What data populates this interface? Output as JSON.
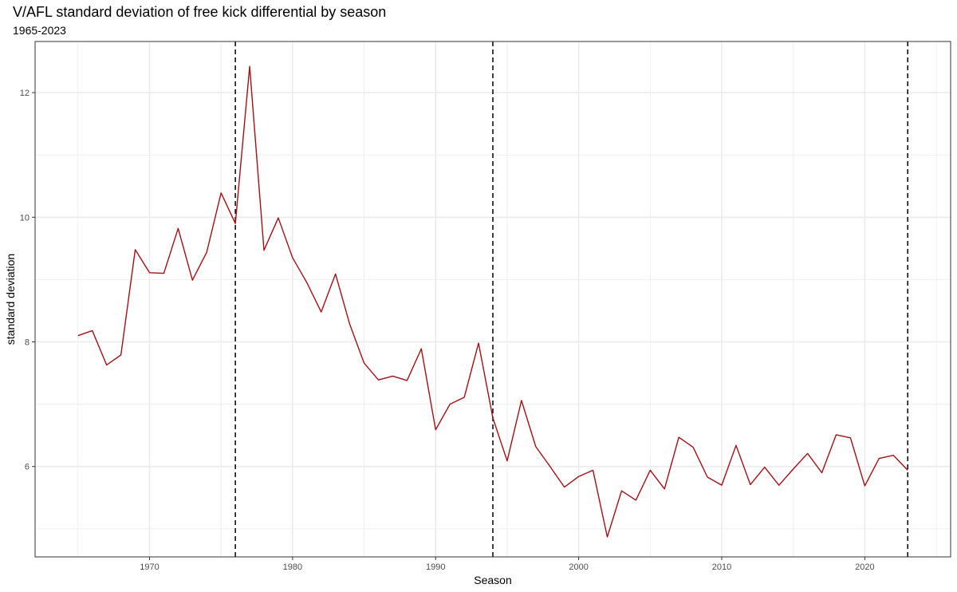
{
  "chart_data": {
    "type": "line",
    "title": "V/AFL standard deviation of free kick differential by season",
    "subtitle": "1965-2023",
    "xlabel": "Season",
    "ylabel": "standard deviation",
    "xlim": [
      1962,
      2026
    ],
    "ylim": [
      4.55,
      12.82
    ],
    "x_ticks": [
      1970,
      1980,
      1990,
      2000,
      2010,
      2020
    ],
    "y_ticks": [
      6,
      8,
      10,
      12
    ],
    "grid": true,
    "legend": "none",
    "colors": {
      "line": "#a50f15",
      "vline": "#000000",
      "grid": "#ebebeb",
      "panel_border": "#333333"
    },
    "vlines": [
      1976,
      1994,
      2023
    ],
    "series": [
      {
        "x": [
          1965,
          1966,
          1967,
          1968,
          1969,
          1970,
          1971,
          1972,
          1973,
          1974,
          1975,
          1976,
          1977,
          1978,
          1979,
          1980,
          1981,
          1982,
          1983,
          1984,
          1985,
          1986,
          1987,
          1988,
          1989,
          1990,
          1991,
          1992,
          1993,
          1994,
          1995,
          1996,
          1997,
          1998,
          1999,
          2000,
          2001,
          2002,
          2003,
          2004,
          2005,
          2006,
          2007,
          2008,
          2009,
          2010,
          2011,
          2012,
          2013,
          2014,
          2015,
          2016,
          2017,
          2018,
          2019,
          2020,
          2021,
          2022,
          2023
        ],
        "values": [
          8.1,
          8.18,
          7.63,
          7.79,
          9.48,
          9.11,
          9.1,
          9.82,
          8.99,
          9.44,
          10.39,
          9.9,
          12.42,
          9.47,
          9.99,
          9.35,
          8.95,
          8.48,
          9.09,
          8.28,
          7.66,
          7.39,
          7.45,
          7.38,
          7.89,
          6.59,
          7.0,
          7.11,
          7.98,
          6.78,
          6.09,
          7.06,
          6.32,
          6.0,
          5.67,
          5.84,
          5.94,
          4.87,
          5.61,
          5.46,
          5.94,
          5.64,
          6.47,
          6.31,
          5.83,
          5.7,
          6.34,
          5.71,
          5.99,
          5.7,
          5.96,
          6.21,
          5.9,
          6.51,
          6.46,
          5.69,
          6.13,
          6.18,
          5.94
        ]
      }
    ]
  }
}
